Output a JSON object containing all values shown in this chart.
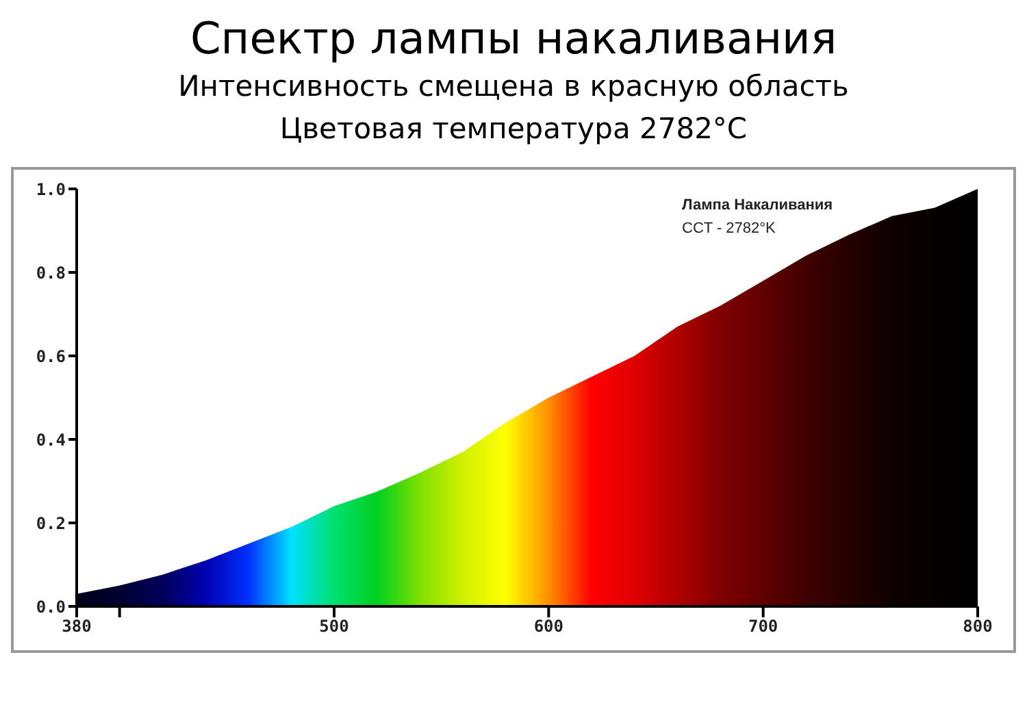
{
  "chart_data": {
    "type": "area",
    "title": "Спектр лампы накаливания",
    "subtitle": "Интенсивность смещена в красную область\nЦветовая температура 2782°C",
    "annotations": [
      "Лампа Накаливания",
      "CCT - 2782°K"
    ],
    "x": [
      380,
      400,
      420,
      440,
      460,
      480,
      500,
      520,
      540,
      560,
      580,
      600,
      620,
      640,
      660,
      680,
      700,
      720,
      740,
      760,
      780,
      800
    ],
    "series": [
      {
        "values": [
          0.03,
          0.05,
          0.076,
          0.11,
          0.15,
          0.19,
          0.24,
          0.275,
          0.32,
          0.37,
          0.44,
          0.5,
          0.55,
          0.6,
          0.67,
          0.72,
          0.78,
          0.84,
          0.89,
          0.935,
          0.955,
          1.0
        ],
        "colors": [
          "#00001a",
          "#000030",
          "#00005a",
          "#0000b0",
          "#0030ff",
          "#00e0ff",
          "#00e070",
          "#00d020",
          "#80e000",
          "#d0f000",
          "#ffff00",
          "#ff9000",
          "#ff0000",
          "#e00000",
          "#b00000",
          "#800000",
          "#600000",
          "#400000",
          "#250000",
          "#100000",
          "#050000",
          "#000000"
        ]
      }
    ],
    "xlim": [
      380,
      800
    ],
    "xticks": [
      380,
      {
        "value": 400,
        "label": null
      },
      500,
      600,
      700,
      800
    ],
    "ylim": [
      0,
      1
    ],
    "yticks": [
      {
        "value": 0,
        "label": "0.0"
      },
      0.2,
      0.4,
      0.6,
      0.8,
      {
        "value": 1,
        "label": "1.0"
      }
    ],
    "grid": false,
    "legend": false
  }
}
